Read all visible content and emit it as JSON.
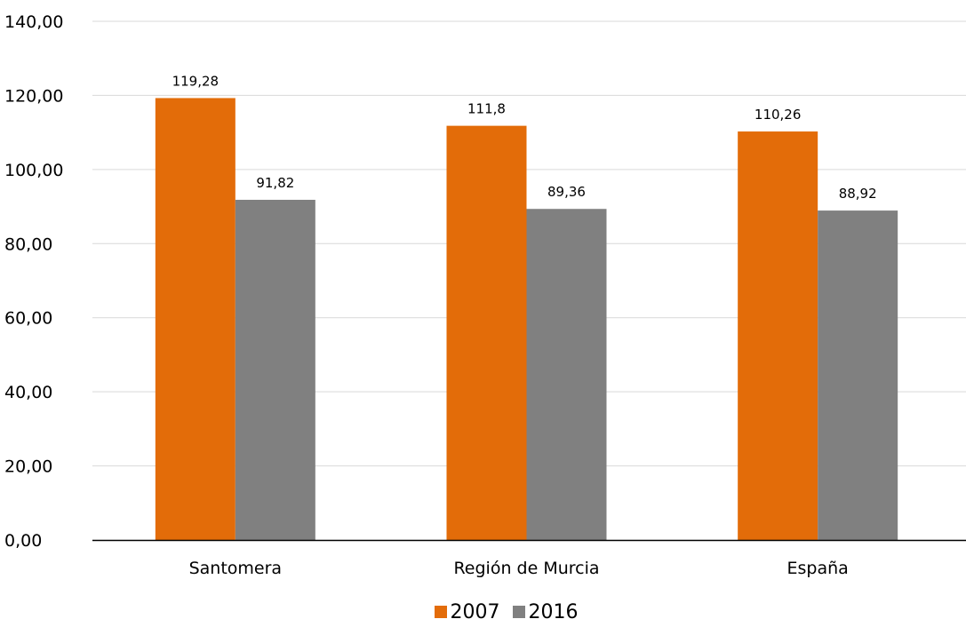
{
  "chart_data": {
    "type": "bar",
    "categories": [
      "Santomera",
      "Región de Murcia",
      "España"
    ],
    "series": [
      {
        "name": "2007",
        "color": "#E36C09",
        "values": [
          119.28,
          111.8,
          110.26
        ],
        "labels": [
          "119,28",
          "111,8",
          "110,26"
        ]
      },
      {
        "name": "2016",
        "color": "#808080",
        "values": [
          91.82,
          89.36,
          88.92
        ],
        "labels": [
          "91,82",
          "89,36",
          "88,92"
        ]
      }
    ],
    "y_ticks": [
      0,
      20,
      40,
      60,
      80,
      100,
      120,
      140
    ],
    "y_tick_labels": [
      "0,00",
      "20,00",
      "40,00",
      "60,00",
      "80,00",
      "100,00",
      "120,00",
      "140,00"
    ],
    "ylim": [
      0,
      140
    ],
    "title": "",
    "xlabel": "",
    "ylabel": "",
    "grid": true,
    "legend_position": "bottom-center"
  }
}
